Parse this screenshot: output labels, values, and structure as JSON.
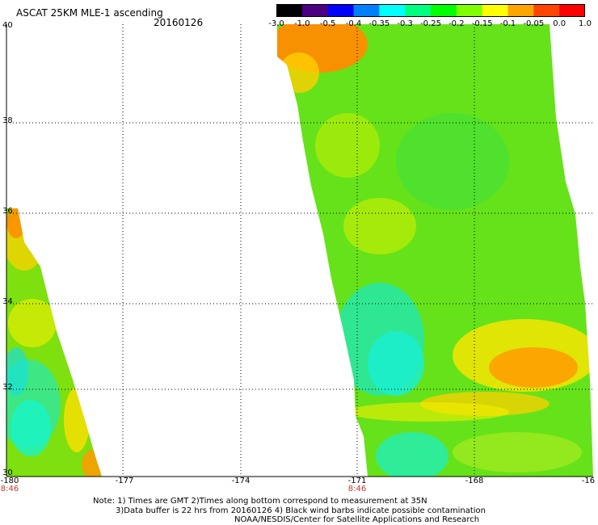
{
  "title": "ASCAT 25KM MLE-1 ascending",
  "date": "20160126",
  "colorbar": {
    "ticks": [
      "-3.0",
      "-1.0",
      "-0.5",
      "-0.4",
      "-0.35",
      "-0.3",
      "-0.25",
      "-0.2",
      "-0.15",
      "-0.1",
      "-0.05",
      "0.0",
      "1.0"
    ],
    "colors": [
      "#000000",
      "#4b0082",
      "#0000ff",
      "#0080ff",
      "#00ffff",
      "#00ff80",
      "#00ff00",
      "#80ff00",
      "#ffff00",
      "#ffa500",
      "#ff4500",
      "#ff0000"
    ]
  },
  "axes": {
    "lat_labels": [
      "40",
      "38",
      "36",
      "34",
      "32",
      "30"
    ],
    "lon_labels": [
      "-180",
      "-177",
      "-174",
      "-171",
      "-168",
      "-16"
    ],
    "time_labels": [
      "8:46",
      "8:46"
    ]
  },
  "notes": [
    "Note: 1) Times are GMT 2)Times along bottom correspond to measurement at 35N",
    "3)Data buffer is 22 hrs from 20160126 4) Black wind barbs indicate possible contamination",
    "NOAA/NESDIS/Center for Satellite Applications and Research"
  ]
}
